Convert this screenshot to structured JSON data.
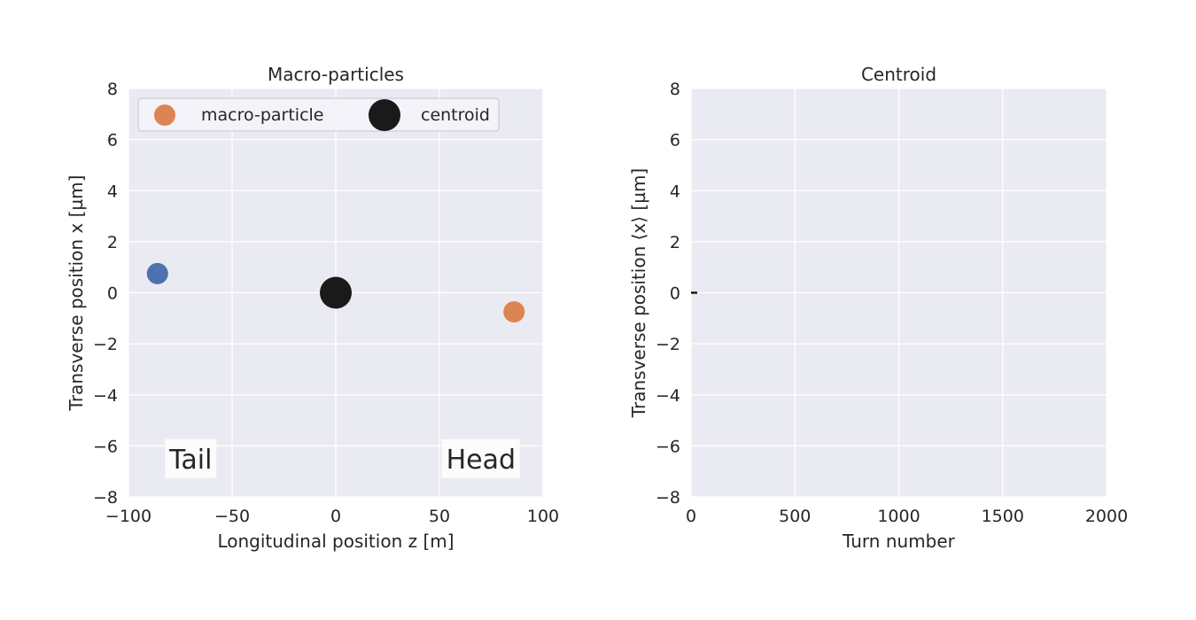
{
  "colors": {
    "axes_bg": "#EAEAF2",
    "grid": "#FFFFFF",
    "tail": "#4C72B0",
    "head": "#DD8452",
    "centroid": "#1A1A1A",
    "text": "#262626"
  },
  "chart_data": [
    {
      "type": "scatter",
      "title": "Macro-particles",
      "xlabel": "Longitudinal position z [m]",
      "ylabel": "Transverse position x [µm]",
      "xlim": [
        -100,
        100
      ],
      "ylim": [
        -8,
        8
      ],
      "xticks": [
        -100,
        -50,
        0,
        50,
        100
      ],
      "xtick_labels": [
        "−100",
        "−50",
        "0",
        "50",
        "100"
      ],
      "yticks": [
        -8,
        -6,
        -4,
        -2,
        0,
        2,
        4,
        6,
        8
      ],
      "ytick_labels": [
        "−8",
        "−6",
        "−4",
        "−2",
        "0",
        "2",
        "4",
        "6",
        "8"
      ],
      "grid": true,
      "legend": {
        "placement": "top-left",
        "entries": [
          "macro-particle",
          "centroid"
        ]
      },
      "points": [
        {
          "name": "tail-particle",
          "x": -86,
          "y": 0.75,
          "color": "#4C72B0"
        },
        {
          "name": "head-particle",
          "x": 86,
          "y": -0.75,
          "color": "#DD8452"
        },
        {
          "name": "centroid",
          "x": 0,
          "y": 0,
          "color": "#1A1A1A"
        }
      ],
      "annotations": [
        {
          "text": "Tail",
          "x": -70,
          "y": -6.5
        },
        {
          "text": "Head",
          "x": 70,
          "y": -6.5
        }
      ]
    },
    {
      "type": "line",
      "title": "Centroid",
      "xlabel": "Turn number",
      "ylabel": "Transverse position ⟨x⟩ [µm]",
      "xlim": [
        0,
        2000
      ],
      "ylim": [
        -8,
        8
      ],
      "xticks": [
        0,
        500,
        1000,
        1500,
        2000
      ],
      "xtick_labels": [
        "0",
        "500",
        "1000",
        "1500",
        "2000"
      ],
      "yticks": [
        -8,
        -6,
        -4,
        -2,
        0,
        2,
        4,
        6,
        8
      ],
      "ytick_labels": [
        "−8",
        "−6",
        "−4",
        "−2",
        "0",
        "2",
        "4",
        "6",
        "8"
      ],
      "grid": true,
      "series": [
        {
          "x": [
            0,
            10,
            20,
            30
          ],
          "y": [
            0,
            0,
            0,
            0
          ],
          "color": "#1A1A1A"
        }
      ]
    }
  ]
}
